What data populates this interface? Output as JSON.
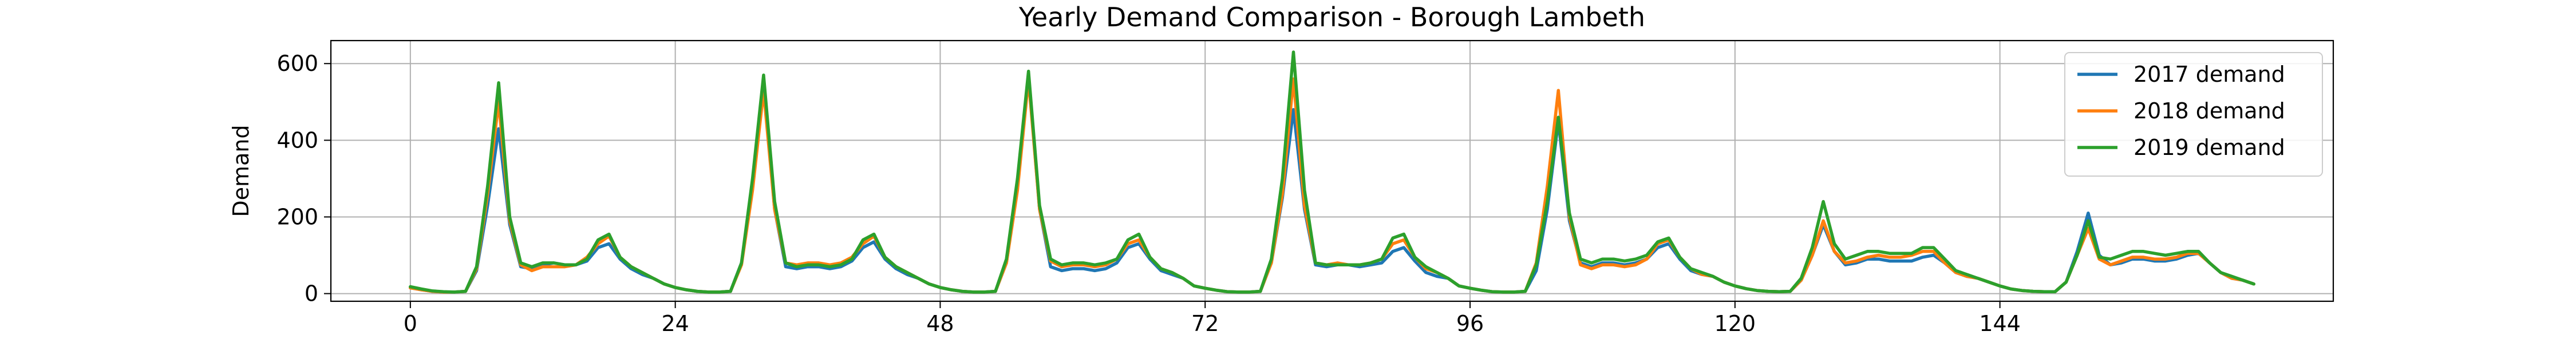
{
  "chart_data": {
    "type": "line",
    "title": "Yearly Demand Comparison - Borough Lambeth",
    "xlabel": "",
    "ylabel": "Demand",
    "xlim": [
      -7.2,
      174.2
    ],
    "ylim": [
      -20,
      660
    ],
    "xticks": [
      0,
      24,
      48,
      72,
      96,
      120,
      144
    ],
    "yticks": [
      0,
      200,
      400,
      600
    ],
    "grid": true,
    "legend_position": "top-right",
    "series_colors": [
      "#1f77b4",
      "#ff7f0e",
      "#2ca02c"
    ],
    "x_start": 0,
    "series": [
      {
        "name": "2017 demand",
        "values": [
          15,
          10,
          6,
          4,
          4,
          6,
          60,
          230,
          430,
          180,
          70,
          65,
          75,
          80,
          75,
          75,
          85,
          120,
          130,
          90,
          65,
          50,
          40,
          25,
          16,
          10,
          6,
          4,
          4,
          6,
          80,
          280,
          550,
          220,
          70,
          65,
          70,
          70,
          65,
          70,
          85,
          120,
          135,
          90,
          65,
          50,
          40,
          25,
          16,
          10,
          6,
          4,
          4,
          6,
          80,
          280,
          570,
          220,
          70,
          60,
          65,
          65,
          60,
          65,
          80,
          120,
          130,
          90,
          60,
          50,
          40,
          20,
          14,
          9,
          5,
          4,
          4,
          6,
          80,
          250,
          480,
          220,
          75,
          70,
          75,
          75,
          70,
          75,
          80,
          110,
          120,
          85,
          55,
          45,
          40,
          20,
          14,
          9,
          5,
          4,
          4,
          6,
          60,
          220,
          450,
          190,
          80,
          70,
          80,
          80,
          75,
          80,
          90,
          120,
          130,
          90,
          60,
          50,
          45,
          30,
          20,
          13,
          8,
          6,
          5,
          6,
          35,
          100,
          180,
          110,
          75,
          80,
          90,
          90,
          85,
          85,
          85,
          95,
          100,
          80,
          55,
          45,
          40,
          30,
          20,
          12,
          8,
          6,
          5,
          5,
          30,
          110,
          210,
          100,
          75,
          80,
          90,
          90,
          85,
          85,
          90,
          100,
          105,
          80,
          55,
          40,
          35,
          25
        ]
      },
      {
        "name": "2018 demand",
        "values": [
          15,
          10,
          6,
          4,
          4,
          6,
          65,
          260,
          500,
          190,
          75,
          60,
          70,
          70,
          70,
          75,
          95,
          130,
          150,
          95,
          70,
          55,
          40,
          25,
          16,
          10,
          6,
          4,
          4,
          6,
          75,
          270,
          530,
          220,
          80,
          75,
          80,
          80,
          75,
          80,
          95,
          130,
          150,
          95,
          70,
          55,
          40,
          25,
          16,
          10,
          6,
          4,
          4,
          6,
          80,
          270,
          560,
          220,
          85,
          70,
          75,
          75,
          70,
          75,
          90,
          130,
          140,
          95,
          65,
          55,
          40,
          20,
          14,
          9,
          5,
          4,
          4,
          6,
          80,
          260,
          560,
          230,
          80,
          75,
          80,
          75,
          75,
          80,
          90,
          130,
          140,
          95,
          65,
          55,
          40,
          20,
          14,
          9,
          5,
          4,
          4,
          6,
          80,
          280,
          530,
          200,
          75,
          65,
          75,
          75,
          70,
          75,
          90,
          130,
          140,
          95,
          65,
          50,
          45,
          30,
          20,
          13,
          8,
          6,
          5,
          6,
          35,
          100,
          190,
          110,
          80,
          85,
          95,
          100,
          95,
          95,
          100,
          110,
          110,
          80,
          55,
          45,
          40,
          30,
          20,
          12,
          8,
          6,
          5,
          5,
          30,
          100,
          170,
          90,
          75,
          85,
          95,
          95,
          90,
          90,
          95,
          105,
          105,
          80,
          55,
          40,
          35,
          25
        ]
      },
      {
        "name": "2019 demand",
        "values": [
          18,
          12,
          7,
          5,
          4,
          6,
          70,
          280,
          550,
          200,
          80,
          70,
          80,
          80,
          75,
          75,
          90,
          140,
          155,
          95,
          70,
          55,
          40,
          25,
          16,
          10,
          6,
          4,
          4,
          6,
          80,
          300,
          570,
          240,
          80,
          70,
          75,
          75,
          70,
          75,
          90,
          140,
          155,
          95,
          70,
          55,
          40,
          25,
          16,
          10,
          6,
          4,
          4,
          6,
          90,
          300,
          580,
          230,
          90,
          75,
          80,
          80,
          75,
          80,
          90,
          140,
          155,
          95,
          65,
          55,
          40,
          20,
          14,
          9,
          5,
          4,
          4,
          6,
          90,
          300,
          630,
          270,
          80,
          75,
          75,
          75,
          75,
          80,
          90,
          145,
          155,
          95,
          70,
          55,
          40,
          20,
          14,
          9,
          5,
          4,
          4,
          6,
          75,
          240,
          460,
          210,
          90,
          80,
          90,
          90,
          85,
          90,
          100,
          135,
          145,
          95,
          65,
          55,
          45,
          30,
          20,
          13,
          8,
          6,
          5,
          6,
          40,
          120,
          240,
          130,
          90,
          100,
          110,
          110,
          105,
          105,
          105,
          120,
          120,
          90,
          60,
          50,
          40,
          30,
          20,
          12,
          8,
          6,
          5,
          5,
          30,
          100,
          190,
          95,
          90,
          100,
          110,
          110,
          105,
          100,
          105,
          110,
          110,
          80,
          55,
          45,
          35,
          25
        ]
      }
    ]
  }
}
